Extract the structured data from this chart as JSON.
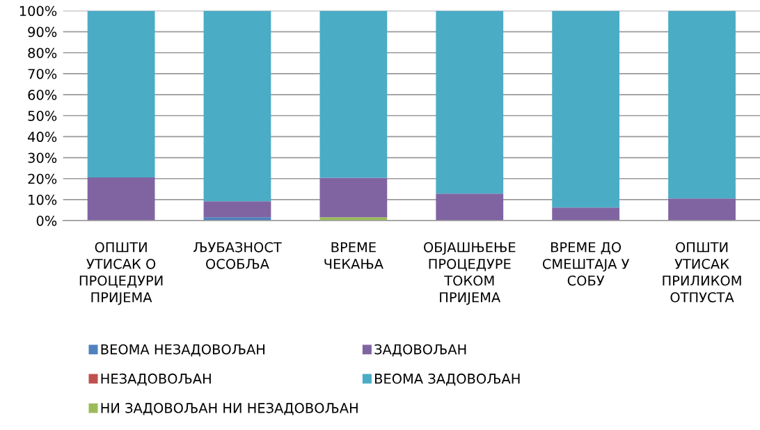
{
  "chart_data": {
    "type": "bar",
    "stacked": true,
    "categories": [
      "ОПШТИ\nУТИСАК О\nПРОЦЕДУРИ\nПРИЈЕМА",
      "ЉУБАЗНОСТ\nОСОБЉА",
      "ВРЕМЕ\nЧЕКАЊА",
      "ОБЈАШЊЕЊЕ\nПРОЦЕДУРЕ\nТОКОМ\nПРИЈЕМА",
      "ВРЕМЕ ДО\nСМЕШТАЈА У\nСОБУ",
      "ОПШТИ\nУТИСАК\nПРИЛИКОМ\nОТПУСТА"
    ],
    "series": [
      {
        "name": "ВЕОМА НЕЗАДОВОЉАН",
        "color": "#4f81bd",
        "values": [
          0,
          1.6,
          0,
          0,
          0,
          0
        ]
      },
      {
        "name": "НЕЗАДОВОЉАН",
        "color": "#c0504d",
        "values": [
          0,
          0,
          0,
          0,
          0,
          0
        ]
      },
      {
        "name": "НИ ЗАДОВОЉАН НИ НЕЗАДОВОЉАН",
        "color": "#9bbb59",
        "values": [
          0,
          0,
          1.6,
          0,
          0,
          0
        ]
      },
      {
        "name": "ЗАДОВОЉАН",
        "color": "#8064a2",
        "values": [
          20.6,
          7.6,
          18.8,
          12.9,
          6.2,
          10.5
        ]
      },
      {
        "name": "ВЕОМА ЗАДОВОЉАН",
        "color": "#4bacc6",
        "values": [
          79.4,
          90.8,
          79.6,
          87.1,
          93.8,
          89.5
        ]
      }
    ],
    "ylim": [
      0,
      100
    ],
    "yticks": [
      {
        "value": 0,
        "label": "0%"
      },
      {
        "value": 10,
        "label": "10%"
      },
      {
        "value": 20,
        "label": "20%"
      },
      {
        "value": 30,
        "label": "30%"
      },
      {
        "value": 40,
        "label": "40%"
      },
      {
        "value": 50,
        "label": "50%"
      },
      {
        "value": 60,
        "label": "60%"
      },
      {
        "value": 70,
        "label": "70%"
      },
      {
        "value": 80,
        "label": "80%"
      },
      {
        "value": 90,
        "label": "90%"
      },
      {
        "value": 100,
        "label": "100%"
      }
    ],
    "grid": "y",
    "legend": "bottom"
  }
}
